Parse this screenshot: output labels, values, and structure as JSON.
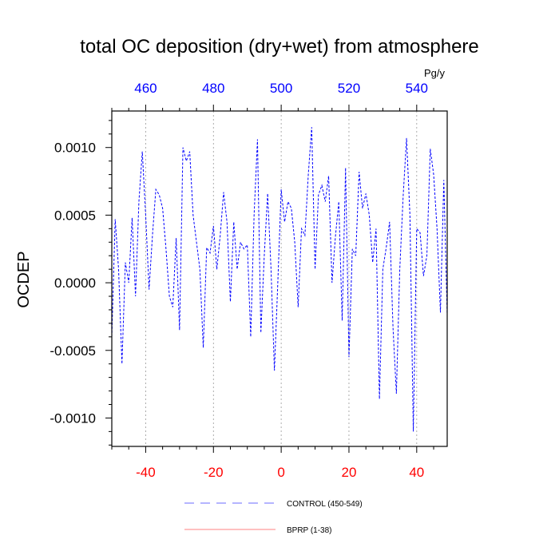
{
  "chart_data": {
    "type": "line",
    "title": "total OC deposition (dry+wet) from atmosphere",
    "ylabel": "OCDEP",
    "top_axis_unit": "Pg/y",
    "x_bottom": {
      "lim": [
        -50,
        49
      ],
      "ticks": [
        -40,
        -20,
        0,
        20,
        40
      ],
      "tick_labels": [
        "-40",
        "-20",
        "0",
        "20",
        "40"
      ],
      "color": "#ff0000"
    },
    "x_top": {
      "lim": [
        450,
        549
      ],
      "ticks": [
        460,
        480,
        500,
        520,
        540
      ],
      "tick_labels": [
        "460",
        "480",
        "500",
        "520",
        "540"
      ],
      "color": "#0000ff"
    },
    "ylim": [
      -0.00121,
      0.00127
    ],
    "y_ticks": [
      -0.001,
      -0.0005,
      0.0,
      0.0005,
      0.001
    ],
    "y_tick_labels": [
      "-0.0010",
      "-0.0005",
      "0.0000",
      "0.0005",
      "0.0010"
    ],
    "grid": "vertical dotted at x ticks",
    "series": [
      {
        "name": "CONTROL (450-549)",
        "style": "dashed",
        "color": "#0000ff",
        "x_top_range": [
          450,
          549
        ],
        "x": [
          -50,
          -49,
          -48,
          -47,
          -46,
          -45,
          -44,
          -43,
          -42,
          -41,
          -40,
          -39,
          -38,
          -37,
          -36,
          -35,
          -34,
          -33,
          -32,
          -31,
          -30,
          -29,
          -28,
          -27,
          -26,
          -25,
          -24,
          -23,
          -22,
          -21,
          -20,
          -19,
          -18,
          -17,
          -16,
          -15,
          -14,
          -13,
          -12,
          -11,
          -10,
          -9,
          -8,
          -7,
          -6,
          -5,
          -4,
          -3,
          -2,
          -1,
          0,
          1,
          2,
          3,
          4,
          5,
          6,
          7,
          8,
          9,
          10,
          11,
          12,
          13,
          14,
          15,
          16,
          17,
          18,
          19,
          20,
          21,
          22,
          23,
          24,
          25,
          26,
          27,
          28,
          29,
          30,
          31,
          32,
          33,
          34,
          35,
          36,
          37,
          38,
          39,
          40,
          41,
          42,
          43,
          44,
          45,
          46,
          47,
          48,
          49
        ],
        "values": [
          -0.0004,
          0.00047,
          0.0001,
          -0.0006,
          0.00015,
          0.0,
          0.00048,
          -0.0001,
          0.0006,
          0.00097,
          0.0005,
          -5e-05,
          0.00035,
          0.00069,
          0.00065,
          0.00055,
          0.00025,
          -0.0001,
          -0.00018,
          0.00033,
          -0.00035,
          0.001,
          0.0009,
          0.00097,
          0.0005,
          0.0003,
          0.0001,
          -0.00048,
          0.00026,
          0.00022,
          0.00042,
          0.0001,
          0.00035,
          0.00067,
          0.00045,
          -0.00014,
          0.00045,
          0.0001,
          0.0003,
          0.00025,
          0.00028,
          -0.0004,
          0.0005,
          0.00106,
          -0.00037,
          0.0002,
          0.00066,
          0.0001,
          -0.00065,
          0.0,
          0.00069,
          0.00045,
          0.0006,
          0.00055,
          0.0003,
          -0.00018,
          0.0004,
          0.00035,
          0.0008,
          0.00115,
          0.0001,
          0.00065,
          0.00072,
          0.0006,
          0.00079,
          0.0,
          0.00034,
          0.0006,
          -0.00028,
          0.00085,
          -0.00055,
          0.00025,
          0.0002,
          0.00082,
          0.00055,
          0.00066,
          0.0005,
          0.00015,
          0.0004,
          -0.00086,
          0.0001,
          0.00026,
          0.00045,
          -0.00033,
          -0.00082,
          0.0001,
          0.00064,
          0.00107,
          0.0005,
          -0.0011,
          0.0004,
          0.00037,
          5e-05,
          0.0002,
          0.00099,
          0.0008,
          0.0004,
          -0.00022,
          0.00076,
          -0.00024
        ]
      },
      {
        "name": "BPRP (1-38)",
        "style": "solid",
        "color": "#ff0000",
        "values": []
      }
    ]
  }
}
